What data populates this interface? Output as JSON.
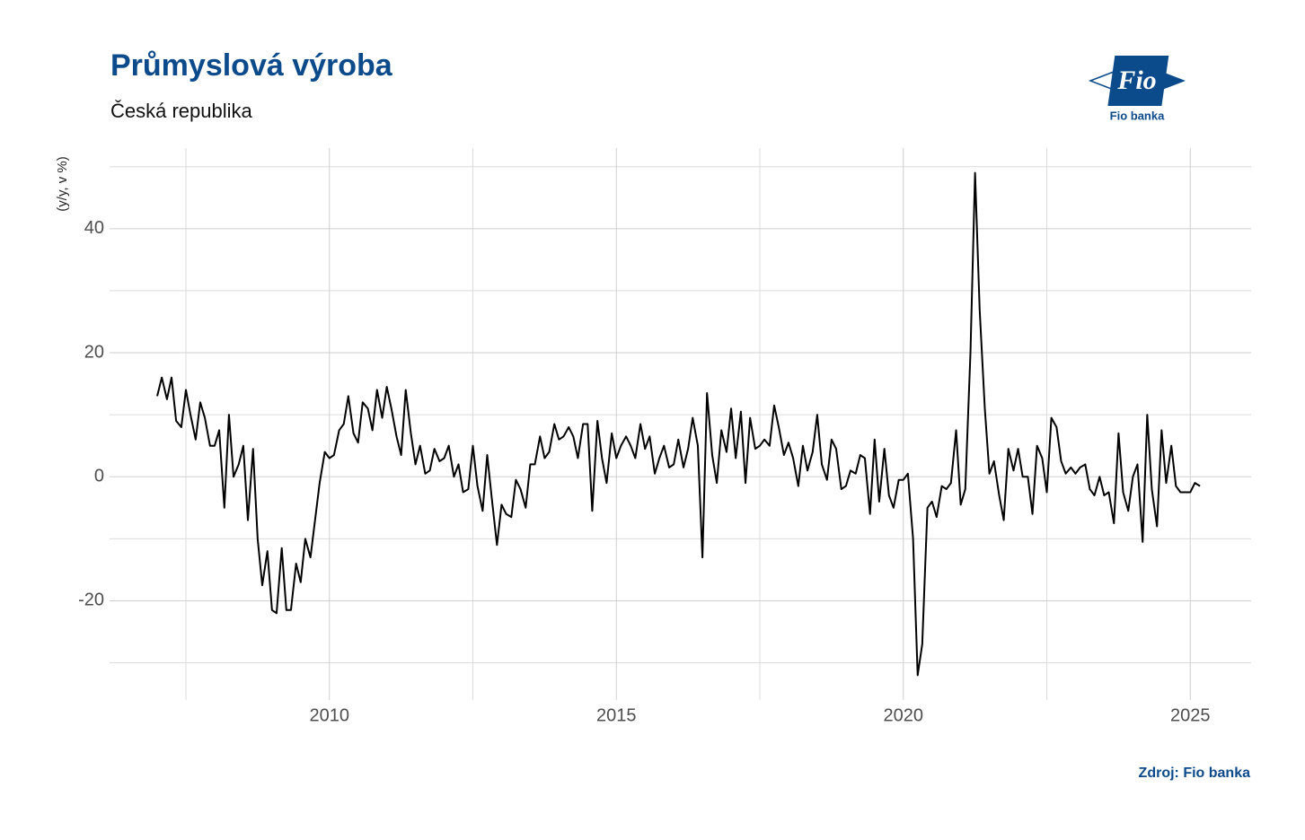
{
  "chart_data": {
    "type": "line",
    "title": "Průmyslová výroba",
    "subtitle": "Česká republika",
    "y_label": "(y/y, v %)",
    "source": "Zdroj: Fio banka",
    "logo": {
      "mark": "Fio",
      "name": "Fio banka"
    },
    "color": "#000000",
    "grid": true,
    "xlim": [
      2006.17,
      2026.06
    ],
    "xticks": [
      2010,
      2015,
      2020,
      2025
    ],
    "x_minor_grid": [
      2007.5,
      2012.5,
      2017.5,
      2022.5
    ],
    "ylim": [
      -36,
      53
    ],
    "yticks": [
      -20,
      0,
      20,
      40
    ],
    "y_minor_grid": [
      -30,
      -10,
      10,
      30,
      50
    ],
    "x": [
      2007,
      2007.08,
      2007.17,
      2007.25,
      2007.33,
      2007.42,
      2007.5,
      2007.58,
      2007.67,
      2007.75,
      2007.83,
      2007.92,
      2008,
      2008.08,
      2008.17,
      2008.25,
      2008.33,
      2008.42,
      2008.5,
      2008.58,
      2008.67,
      2008.75,
      2008.83,
      2008.92,
      2009,
      2009.08,
      2009.17,
      2009.25,
      2009.33,
      2009.42,
      2009.5,
      2009.58,
      2009.67,
      2009.75,
      2009.83,
      2009.92,
      2010,
      2010.08,
      2010.17,
      2010.25,
      2010.33,
      2010.42,
      2010.5,
      2010.58,
      2010.67,
      2010.75,
      2010.83,
      2010.92,
      2011,
      2011.08,
      2011.17,
      2011.25,
      2011.33,
      2011.42,
      2011.5,
      2011.58,
      2011.67,
      2011.75,
      2011.83,
      2011.92,
      2012,
      2012.08,
      2012.17,
      2012.25,
      2012.33,
      2012.42,
      2012.5,
      2012.58,
      2012.67,
      2012.75,
      2012.83,
      2012.92,
      2013,
      2013.08,
      2013.17,
      2013.25,
      2013.33,
      2013.42,
      2013.5,
      2013.58,
      2013.67,
      2013.75,
      2013.83,
      2013.92,
      2014,
      2014.08,
      2014.17,
      2014.25,
      2014.33,
      2014.42,
      2014.5,
      2014.58,
      2014.67,
      2014.75,
      2014.83,
      2014.92,
      2015,
      2015.08,
      2015.17,
      2015.25,
      2015.33,
      2015.42,
      2015.5,
      2015.58,
      2015.67,
      2015.75,
      2015.83,
      2015.92,
      2016,
      2016.08,
      2016.17,
      2016.25,
      2016.33,
      2016.42,
      2016.5,
      2016.58,
      2016.67,
      2016.75,
      2016.83,
      2016.92,
      2017,
      2017.08,
      2017.17,
      2017.25,
      2017.33,
      2017.42,
      2017.5,
      2017.58,
      2017.67,
      2017.75,
      2017.83,
      2017.92,
      2018,
      2018.08,
      2018.17,
      2018.25,
      2018.33,
      2018.42,
      2018.5,
      2018.58,
      2018.67,
      2018.75,
      2018.83,
      2018.92,
      2019,
      2019.08,
      2019.17,
      2019.25,
      2019.33,
      2019.42,
      2019.5,
      2019.58,
      2019.67,
      2019.75,
      2019.83,
      2019.92,
      2020,
      2020.08,
      2020.17,
      2020.25,
      2020.33,
      2020.42,
      2020.5,
      2020.58,
      2020.67,
      2020.75,
      2020.83,
      2020.92,
      2021,
      2021.08,
      2021.17,
      2021.25,
      2021.33,
      2021.42,
      2021.5,
      2021.58,
      2021.67,
      2021.75,
      2021.83,
      2021.92,
      2022,
      2022.08,
      2022.17,
      2022.25,
      2022.33,
      2022.42,
      2022.5,
      2022.58,
      2022.67,
      2022.75,
      2022.83,
      2022.92,
      2023,
      2023.08,
      2023.17,
      2023.25,
      2023.33,
      2023.42,
      2023.5,
      2023.58,
      2023.67,
      2023.75,
      2023.83,
      2023.92,
      2024,
      2024.08,
      2024.17,
      2024.25,
      2024.33,
      2024.42,
      2024.5,
      2024.58,
      2024.67,
      2024.75,
      2024.83,
      2024.92,
      2025,
      2025.08,
      2025.17
    ],
    "values": [
      13,
      16,
      12.5,
      16,
      9,
      8,
      14,
      10,
      6,
      12,
      9.5,
      5,
      5,
      7.5,
      -5,
      10,
      0,
      2,
      5,
      -7,
      4.5,
      -10,
      -17.5,
      -12,
      -21.5,
      -22,
      -11.5,
      -21.5,
      -21.5,
      -14,
      -17,
      -10,
      -13,
      -7,
      -1,
      4,
      3,
      3.5,
      7.5,
      8.5,
      13,
      7,
      5.5,
      12,
      11,
      7.5,
      14,
      9.5,
      14.5,
      11,
      6.5,
      3.5,
      14,
      7,
      2,
      5,
      0.5,
      1,
      4.5,
      2.5,
      3,
      5,
      0,
      2,
      -2.5,
      -2,
      5,
      -1.5,
      -5.5,
      3.5,
      -3.5,
      -11,
      -4.5,
      -6,
      -6.5,
      -0.5,
      -2,
      -5,
      2,
      2,
      6.5,
      3,
      4,
      8.5,
      6,
      6.5,
      8,
      6.5,
      3,
      8.5,
      8.5,
      -5.5,
      9,
      3,
      -1,
      7,
      3,
      5,
      6.5,
      5,
      3,
      8.5,
      4.5,
      6.5,
      0.5,
      3,
      5,
      1.5,
      2,
      6,
      1.5,
      4.5,
      9.5,
      5,
      -13,
      13.5,
      3.5,
      -1,
      7.5,
      4,
      11,
      3,
      10.5,
      -1,
      9.5,
      4.5,
      5,
      6,
      5,
      11.5,
      8,
      3.5,
      5.5,
      3,
      -1.5,
      5,
      1,
      4,
      10,
      2,
      -0.5,
      6,
      4.5,
      -2,
      -1.5,
      1,
      0.5,
      3.5,
      3,
      -6,
      6,
      -4,
      4.5,
      -3,
      -5,
      -0.5,
      -0.5,
      0.5,
      -10,
      -32,
      -27,
      -5,
      -4,
      -6.5,
      -1.5,
      -2,
      -1,
      7.5,
      -4.5,
      -2,
      20,
      49,
      27,
      11,
      0.5,
      2.5,
      -3,
      -7,
      4.5,
      1,
      4.5,
      0,
      0,
      -6,
      5,
      3,
      -2.5,
      9.5,
      8,
      2.5,
      0.5,
      1.5,
      0.5,
      1.5,
      2,
      -2,
      -3,
      0,
      -3,
      -2.5,
      -7.5,
      7,
      -2.5,
      -5.5,
      0,
      2,
      -10.5,
      10,
      -2,
      -8,
      7.5,
      -1,
      5,
      -1.5,
      -2.5,
      -2.5,
      -2.5,
      -1,
      -1.5
    ]
  }
}
